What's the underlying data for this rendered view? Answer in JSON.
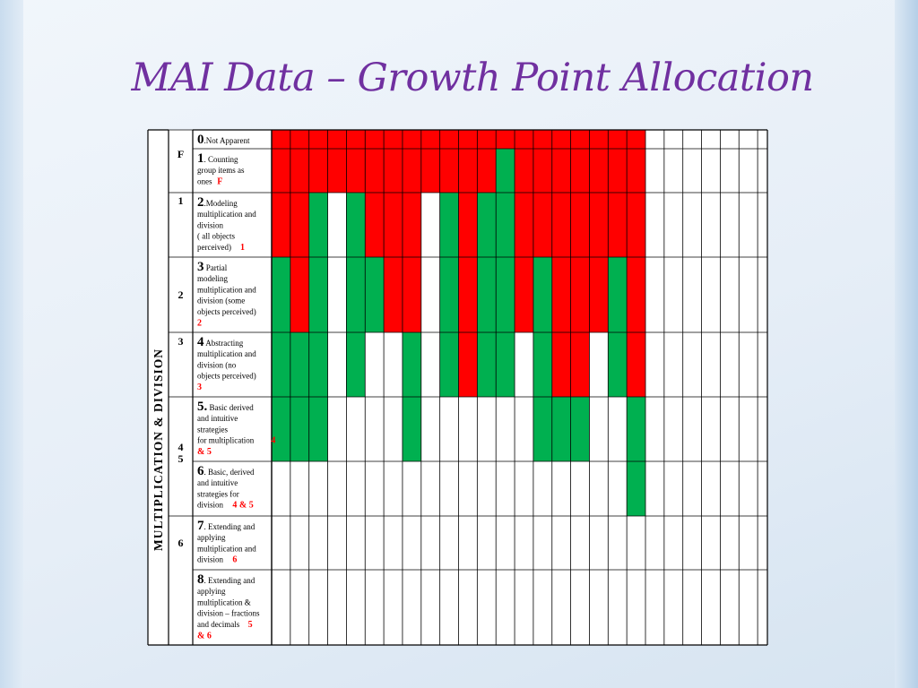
{
  "title": "MAI Data – Growth Point Allocation",
  "domain_label": "MULTIPLICATION & DIVISION",
  "colors": {
    "red": "#ff0000",
    "green": "#00b050",
    "purple": "#7030a0",
    "label_red": "#ff0000"
  },
  "growth_point_groups": [
    "F",
    "1",
    "2",
    "3",
    "4\n5",
    "6"
  ],
  "growth_points": [
    {
      "number": "0",
      "text": [
        ".Not Apparent"
      ],
      "code": ""
    },
    {
      "number": "1",
      "text": [
        ". Counting",
        "group items as",
        "ones"
      ],
      "code": "F"
    },
    {
      "number": "2",
      "text": [
        ".Modeling",
        "multiplication and",
        "division",
        "( all objects",
        "perceived)"
      ],
      "code": "1"
    },
    {
      "number": "3",
      "text": [
        " Partial",
        "modeling",
        "multiplication and",
        "division (some",
        "objects perceived)"
      ],
      "code": "2"
    },
    {
      "number": "4",
      "text": [
        " Abstracting",
        "multiplication and",
        "division (no",
        "objects perceived)"
      ],
      "code": "3"
    },
    {
      "number": "5.",
      "text": [
        " Basic derived",
        "and intuitive",
        "strategies",
        "for multiplication"
      ],
      "code": "4 & 5"
    },
    {
      "number": "6",
      "text": [
        ". Basic, derived",
        "and intuitive",
        "strategies for",
        "division"
      ],
      "code": "4 & 5"
    },
    {
      "number": "7",
      "text": [
        ". Extending and",
        "applying",
        "multiplication and",
        "division"
      ],
      "code": "6"
    },
    {
      "number": "8",
      "text": [
        ". Extending and",
        "applying",
        "multiplication &",
        "division – fractions",
        "and decimals"
      ],
      "code": "5 & 6"
    }
  ],
  "chart_data": {
    "type": "heatmap",
    "legend_codes": {
      "R": "red",
      "G": "green",
      "W": "empty"
    },
    "num_columns": 26,
    "rows": [
      [
        "R",
        "R",
        "R",
        "R",
        "R",
        "R",
        "R",
        "R",
        "R",
        "R",
        "R",
        "R",
        "R",
        "R",
        "R",
        "R",
        "R",
        "R",
        "R",
        "R",
        "W",
        "W",
        "W",
        "W",
        "W",
        "W"
      ],
      [
        "R",
        "R",
        "R",
        "R",
        "R",
        "R",
        "R",
        "R",
        "R",
        "R",
        "R",
        "R",
        "G",
        "R",
        "R",
        "R",
        "R",
        "R",
        "R",
        "R",
        "W",
        "W",
        "W",
        "W",
        "W",
        "W"
      ],
      [
        "R",
        "R",
        "G",
        "W",
        "G",
        "R",
        "R",
        "R",
        "W",
        "G",
        "R",
        "G",
        "G",
        "R",
        "R",
        "R",
        "R",
        "R",
        "R",
        "R",
        "W",
        "W",
        "W",
        "W",
        "W",
        "W"
      ],
      [
        "G",
        "R",
        "G",
        "W",
        "G",
        "G",
        "R",
        "R",
        "W",
        "G",
        "R",
        "G",
        "G",
        "R",
        "G",
        "R",
        "R",
        "R",
        "G",
        "R",
        "W",
        "W",
        "W",
        "W",
        "W",
        "W"
      ],
      [
        "G",
        "G",
        "G",
        "W",
        "G",
        "W",
        "W",
        "G",
        "W",
        "G",
        "R",
        "G",
        "G",
        "W",
        "G",
        "R",
        "R",
        "W",
        "G",
        "R",
        "W",
        "W",
        "W",
        "W",
        "W",
        "W"
      ],
      [
        "G",
        "G",
        "G",
        "W",
        "W",
        "W",
        "W",
        "G",
        "W",
        "W",
        "W",
        "W",
        "W",
        "W",
        "G",
        "G",
        "G",
        "W",
        "W",
        "G",
        "W",
        "W",
        "W",
        "W",
        "W",
        "W"
      ],
      [
        "W",
        "W",
        "W",
        "W",
        "W",
        "W",
        "W",
        "W",
        "W",
        "W",
        "W",
        "W",
        "W",
        "W",
        "W",
        "W",
        "W",
        "W",
        "W",
        "G",
        "W",
        "W",
        "W",
        "W",
        "W",
        "W"
      ],
      [
        "W",
        "W",
        "W",
        "W",
        "W",
        "W",
        "W",
        "W",
        "W",
        "W",
        "W",
        "W",
        "W",
        "W",
        "W",
        "W",
        "W",
        "W",
        "W",
        "W",
        "W",
        "W",
        "W",
        "W",
        "W",
        "W"
      ],
      [
        "W",
        "W",
        "W",
        "W",
        "W",
        "W",
        "W",
        "W",
        "W",
        "W",
        "W",
        "W",
        "W",
        "W",
        "W",
        "W",
        "W",
        "W",
        "W",
        "W",
        "W",
        "W",
        "W",
        "W",
        "W",
        "W"
      ]
    ]
  }
}
